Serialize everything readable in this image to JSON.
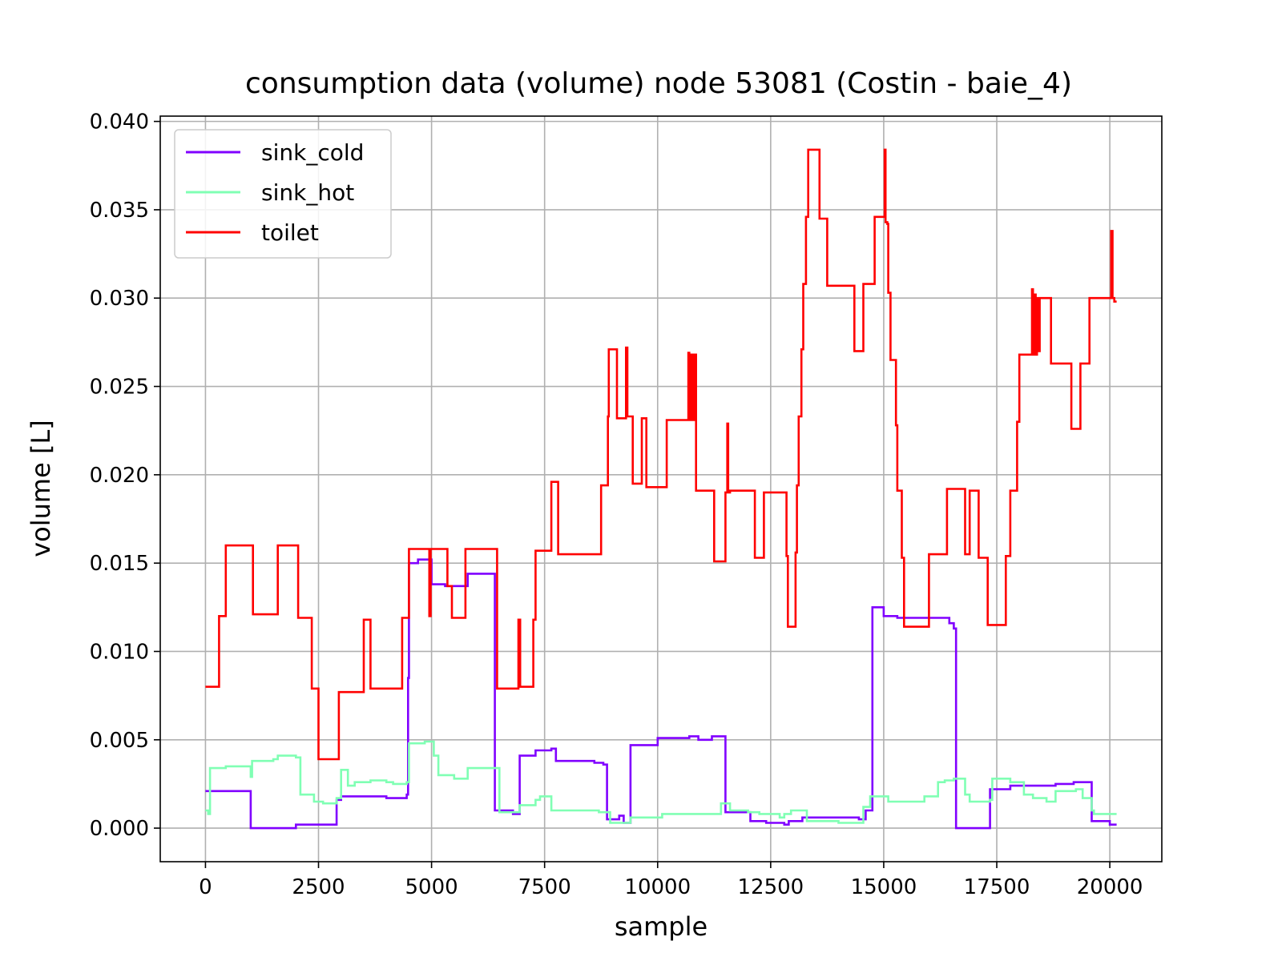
{
  "chart_data": {
    "type": "line",
    "title": "consumption data (volume) node 53081 (Costin - baie_4)",
    "xlabel": "sample",
    "ylabel": "volume [L]",
    "xlim": [
      -1000,
      21150
    ],
    "ylim": [
      -0.0019,
      0.0403
    ],
    "xticks": [
      0,
      2500,
      5000,
      7500,
      10000,
      12500,
      15000,
      17500,
      20000
    ],
    "yticks": [
      0.0,
      0.005,
      0.01,
      0.015,
      0.02,
      0.025,
      0.03,
      0.035,
      0.04
    ],
    "xtick_labels": [
      "0",
      "2500",
      "5000",
      "7500",
      "10000",
      "12500",
      "15000",
      "17500",
      "20000"
    ],
    "ytick_labels": [
      "0.000",
      "0.005",
      "0.010",
      "0.015",
      "0.020",
      "0.025",
      "0.030",
      "0.035",
      "0.040"
    ],
    "grid": true,
    "legend_position": "upper-left",
    "step": true,
    "series": [
      {
        "name": "sink_cold",
        "color": "#8000ff",
        "points": [
          [
            0,
            0.0021
          ],
          [
            1000,
            0.0
          ],
          [
            2000,
            0.0002
          ],
          [
            2900,
            0.0016
          ],
          [
            3000,
            0.0018
          ],
          [
            3600,
            0.0018
          ],
          [
            4000,
            0.0017
          ],
          [
            4450,
            0.0019
          ],
          [
            4480,
            0.0085
          ],
          [
            4500,
            0.015
          ],
          [
            4700,
            0.0152
          ],
          [
            5000,
            0.0138
          ],
          [
            5300,
            0.0137
          ],
          [
            5700,
            0.0137
          ],
          [
            5800,
            0.0144
          ],
          [
            6400,
            0.001
          ],
          [
            6800,
            0.0008
          ],
          [
            6950,
            0.0041
          ],
          [
            7300,
            0.0044
          ],
          [
            7650,
            0.0045
          ],
          [
            7750,
            0.0038
          ],
          [
            8600,
            0.0037
          ],
          [
            8800,
            0.0036
          ],
          [
            8880,
            0.0005
          ],
          [
            9150,
            0.0007
          ],
          [
            9250,
            0.0003
          ],
          [
            9400,
            0.0047
          ],
          [
            10000,
            0.0051
          ],
          [
            10700,
            0.0052
          ],
          [
            10900,
            0.005
          ],
          [
            11200,
            0.0052
          ],
          [
            11500,
            0.0009
          ],
          [
            12050,
            0.0004
          ],
          [
            12400,
            0.0003
          ],
          [
            12800,
            0.0002
          ],
          [
            12900,
            0.0004
          ],
          [
            13200,
            0.0006
          ],
          [
            14000,
            0.0006
          ],
          [
            14450,
            0.0005
          ],
          [
            14600,
            0.001
          ],
          [
            14750,
            0.0125
          ],
          [
            15000,
            0.012
          ],
          [
            15300,
            0.0119
          ],
          [
            16300,
            0.0119
          ],
          [
            16450,
            0.0116
          ],
          [
            16550,
            0.0113
          ],
          [
            16600,
            0.0
          ],
          [
            17350,
            0.0022
          ],
          [
            17800,
            0.0024
          ],
          [
            18600,
            0.0024
          ],
          [
            18800,
            0.0025
          ],
          [
            19200,
            0.0026
          ],
          [
            19600,
            0.0004
          ],
          [
            20000,
            0.0002
          ],
          [
            20150,
            0.0002
          ]
        ]
      },
      {
        "name": "sink_hot",
        "color": "#80ffb4",
        "points": [
          [
            0,
            0.001
          ],
          [
            60,
            0.0008
          ],
          [
            100,
            0.0034
          ],
          [
            450,
            0.0035
          ],
          [
            1000,
            0.0029
          ],
          [
            1030,
            0.0038
          ],
          [
            1500,
            0.0039
          ],
          [
            1600,
            0.0041
          ],
          [
            2000,
            0.004
          ],
          [
            2100,
            0.0019
          ],
          [
            2400,
            0.0015
          ],
          [
            2600,
            0.0014
          ],
          [
            2900,
            0.0017
          ],
          [
            3000,
            0.0033
          ],
          [
            3150,
            0.0024
          ],
          [
            3300,
            0.0026
          ],
          [
            3650,
            0.0027
          ],
          [
            4000,
            0.0026
          ],
          [
            4150,
            0.0025
          ],
          [
            4450,
            0.0026
          ],
          [
            4500,
            0.0048
          ],
          [
            4850,
            0.0049
          ],
          [
            5050,
            0.0041
          ],
          [
            5150,
            0.003
          ],
          [
            5500,
            0.0028
          ],
          [
            5800,
            0.0034
          ],
          [
            6500,
            0.0009
          ],
          [
            6950,
            0.0013
          ],
          [
            7300,
            0.0016
          ],
          [
            7400,
            0.0018
          ],
          [
            7650,
            0.001
          ],
          [
            8050,
            0.001
          ],
          [
            8450,
            0.001
          ],
          [
            8700,
            0.0009
          ],
          [
            8950,
            0.0003
          ],
          [
            9350,
            0.0003
          ],
          [
            9400,
            0.0006
          ],
          [
            10000,
            0.0006
          ],
          [
            10100,
            0.0008
          ],
          [
            10600,
            0.0008
          ],
          [
            10950,
            0.0008
          ],
          [
            11400,
            0.0014
          ],
          [
            11600,
            0.001
          ],
          [
            12000,
            0.0009
          ],
          [
            12250,
            0.0008
          ],
          [
            12700,
            0.0006
          ],
          [
            12800,
            0.0008
          ],
          [
            12950,
            0.001
          ],
          [
            13300,
            0.0004
          ],
          [
            14000,
            0.0003
          ],
          [
            14450,
            0.0003
          ],
          [
            14550,
            0.0012
          ],
          [
            14700,
            0.0018
          ],
          [
            15100,
            0.0015
          ],
          [
            15900,
            0.0018
          ],
          [
            16200,
            0.0026
          ],
          [
            16350,
            0.0027
          ],
          [
            16550,
            0.0028
          ],
          [
            16800,
            0.0019
          ],
          [
            16900,
            0.0015
          ],
          [
            17350,
            0.0016
          ],
          [
            17400,
            0.0028
          ],
          [
            17800,
            0.0026
          ],
          [
            18100,
            0.0019
          ],
          [
            18300,
            0.0017
          ],
          [
            18600,
            0.0015
          ],
          [
            18800,
            0.0021
          ],
          [
            19250,
            0.0022
          ],
          [
            19400,
            0.0017
          ],
          [
            19600,
            0.001
          ],
          [
            19650,
            0.0008
          ],
          [
            20150,
            0.0008
          ]
        ]
      },
      {
        "name": "toilet",
        "color": "#ff0000",
        "points": [
          [
            0,
            0.008
          ],
          [
            250,
            0.008
          ],
          [
            300,
            0.012
          ],
          [
            400,
            0.012
          ],
          [
            450,
            0.016
          ],
          [
            1000,
            0.016
          ],
          [
            1050,
            0.0121
          ],
          [
            1550,
            0.0121
          ],
          [
            1600,
            0.016
          ],
          [
            2000,
            0.016
          ],
          [
            2050,
            0.0119
          ],
          [
            2300,
            0.0119
          ],
          [
            2350,
            0.0079
          ],
          [
            2450,
            0.0079
          ],
          [
            2500,
            0.0039
          ],
          [
            2900,
            0.0039
          ],
          [
            2950,
            0.0077
          ],
          [
            3450,
            0.0077
          ],
          [
            3500,
            0.0118
          ],
          [
            3600,
            0.0118
          ],
          [
            3650,
            0.0079
          ],
          [
            4300,
            0.0079
          ],
          [
            4350,
            0.0119
          ],
          [
            4450,
            0.0119
          ],
          [
            4500,
            0.0158
          ],
          [
            4920,
            0.0158
          ],
          [
            4950,
            0.012
          ],
          [
            4980,
            0.0158
          ],
          [
            5300,
            0.0158
          ],
          [
            5350,
            0.0137
          ],
          [
            5400,
            0.0137
          ],
          [
            5450,
            0.0119
          ],
          [
            5700,
            0.0119
          ],
          [
            5750,
            0.0158
          ],
          [
            6400,
            0.0158
          ],
          [
            6450,
            0.0079
          ],
          [
            6900,
            0.0079
          ],
          [
            6920,
            0.0118
          ],
          [
            6960,
            0.008
          ],
          [
            7200,
            0.008
          ],
          [
            7250,
            0.0118
          ],
          [
            7300,
            0.0157
          ],
          [
            7600,
            0.0157
          ],
          [
            7650,
            0.0196
          ],
          [
            7750,
            0.0196
          ],
          [
            7800,
            0.0155
          ],
          [
            8700,
            0.0155
          ],
          [
            8750,
            0.0194
          ],
          [
            8850,
            0.0194
          ],
          [
            8900,
            0.0233
          ],
          [
            8920,
            0.0271
          ],
          [
            9050,
            0.0271
          ],
          [
            9100,
            0.0232
          ],
          [
            9250,
            0.0232
          ],
          [
            9300,
            0.0272
          ],
          [
            9330,
            0.0233
          ],
          [
            9450,
            0.0195
          ],
          [
            9600,
            0.0195
          ],
          [
            9650,
            0.0232
          ],
          [
            9700,
            0.0232
          ],
          [
            9750,
            0.0193
          ],
          [
            10150,
            0.0193
          ],
          [
            10200,
            0.0231
          ],
          [
            10650,
            0.0231
          ],
          [
            10680,
            0.0269
          ],
          [
            10700,
            0.0231
          ],
          [
            10730,
            0.0268
          ],
          [
            10750,
            0.0231
          ],
          [
            10780,
            0.0268
          ],
          [
            10800,
            0.0231
          ],
          [
            10830,
            0.0268
          ],
          [
            10850,
            0.0191
          ],
          [
            11200,
            0.0191
          ],
          [
            11250,
            0.0151
          ],
          [
            11450,
            0.0151
          ],
          [
            11500,
            0.019
          ],
          [
            11540,
            0.0229
          ],
          [
            11560,
            0.019
          ],
          [
            11600,
            0.0191
          ],
          [
            12100,
            0.0191
          ],
          [
            12150,
            0.0153
          ],
          [
            12300,
            0.0153
          ],
          [
            12350,
            0.019
          ],
          [
            12800,
            0.019
          ],
          [
            12850,
            0.0154
          ],
          [
            12880,
            0.0114
          ],
          [
            13000,
            0.0114
          ],
          [
            13050,
            0.0156
          ],
          [
            13080,
            0.0194
          ],
          [
            13120,
            0.0233
          ],
          [
            13180,
            0.0271
          ],
          [
            13220,
            0.0308
          ],
          [
            13280,
            0.0346
          ],
          [
            13330,
            0.0384
          ],
          [
            13550,
            0.0384
          ],
          [
            13580,
            0.0345
          ],
          [
            13700,
            0.0345
          ],
          [
            13750,
            0.0307
          ],
          [
            14300,
            0.0307
          ],
          [
            14350,
            0.027
          ],
          [
            14500,
            0.027
          ],
          [
            14550,
            0.0308
          ],
          [
            14750,
            0.0308
          ],
          [
            14800,
            0.0346
          ],
          [
            15000,
            0.0346
          ],
          [
            15020,
            0.0384
          ],
          [
            15040,
            0.0343
          ],
          [
            15080,
            0.0342
          ],
          [
            15100,
            0.0303
          ],
          [
            15150,
            0.0265
          ],
          [
            15250,
            0.0265
          ],
          [
            15270,
            0.0228
          ],
          [
            15300,
            0.0191
          ],
          [
            15350,
            0.0191
          ],
          [
            15400,
            0.0153
          ],
          [
            15450,
            0.0114
          ],
          [
            15950,
            0.0114
          ],
          [
            16000,
            0.0155
          ],
          [
            16350,
            0.0155
          ],
          [
            16400,
            0.0192
          ],
          [
            16750,
            0.0192
          ],
          [
            16800,
            0.0155
          ],
          [
            16850,
            0.0155
          ],
          [
            16900,
            0.0191
          ],
          [
            17050,
            0.0191
          ],
          [
            17100,
            0.0153
          ],
          [
            17250,
            0.0153
          ],
          [
            17300,
            0.0115
          ],
          [
            17650,
            0.0115
          ],
          [
            17700,
            0.0154
          ],
          [
            17800,
            0.0191
          ],
          [
            17900,
            0.0191
          ],
          [
            17950,
            0.023
          ],
          [
            18000,
            0.0268
          ],
          [
            18250,
            0.0268
          ],
          [
            18280,
            0.0305
          ],
          [
            18300,
            0.0268
          ],
          [
            18330,
            0.0302
          ],
          [
            18360,
            0.0268
          ],
          [
            18390,
            0.03
          ],
          [
            18410,
            0.027
          ],
          [
            18450,
            0.03
          ],
          [
            18650,
            0.03
          ],
          [
            18700,
            0.0263
          ],
          [
            19100,
            0.0263
          ],
          [
            19150,
            0.0226
          ],
          [
            19300,
            0.0226
          ],
          [
            19350,
            0.0263
          ],
          [
            19500,
            0.0263
          ],
          [
            19550,
            0.03
          ],
          [
            20000,
            0.03
          ],
          [
            20030,
            0.0338
          ],
          [
            20060,
            0.03
          ],
          [
            20100,
            0.0298
          ],
          [
            20150,
            0.0298
          ]
        ]
      }
    ]
  }
}
